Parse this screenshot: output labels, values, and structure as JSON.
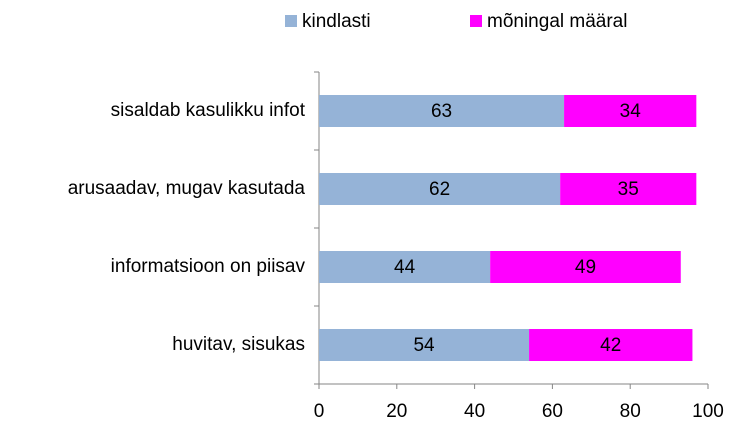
{
  "chart_data": {
    "type": "bar",
    "orientation": "horizontal",
    "stacked": true,
    "categories": [
      "sisaldab kasulikku infot",
      "arusaadav, mugav kasutada",
      "informatsioon on piisav",
      "huvitav, sisukas"
    ],
    "series": [
      {
        "name": "kindlasti",
        "color": "#95b3d7",
        "values": [
          63,
          62,
          44,
          54
        ]
      },
      {
        "name": "mõningal määral",
        "color": "#ff00ff",
        "values": [
          34,
          35,
          49,
          42
        ]
      }
    ],
    "xlim": [
      0,
      100
    ],
    "xticks": [
      0,
      20,
      40,
      60,
      80,
      100
    ],
    "legend": "top"
  }
}
